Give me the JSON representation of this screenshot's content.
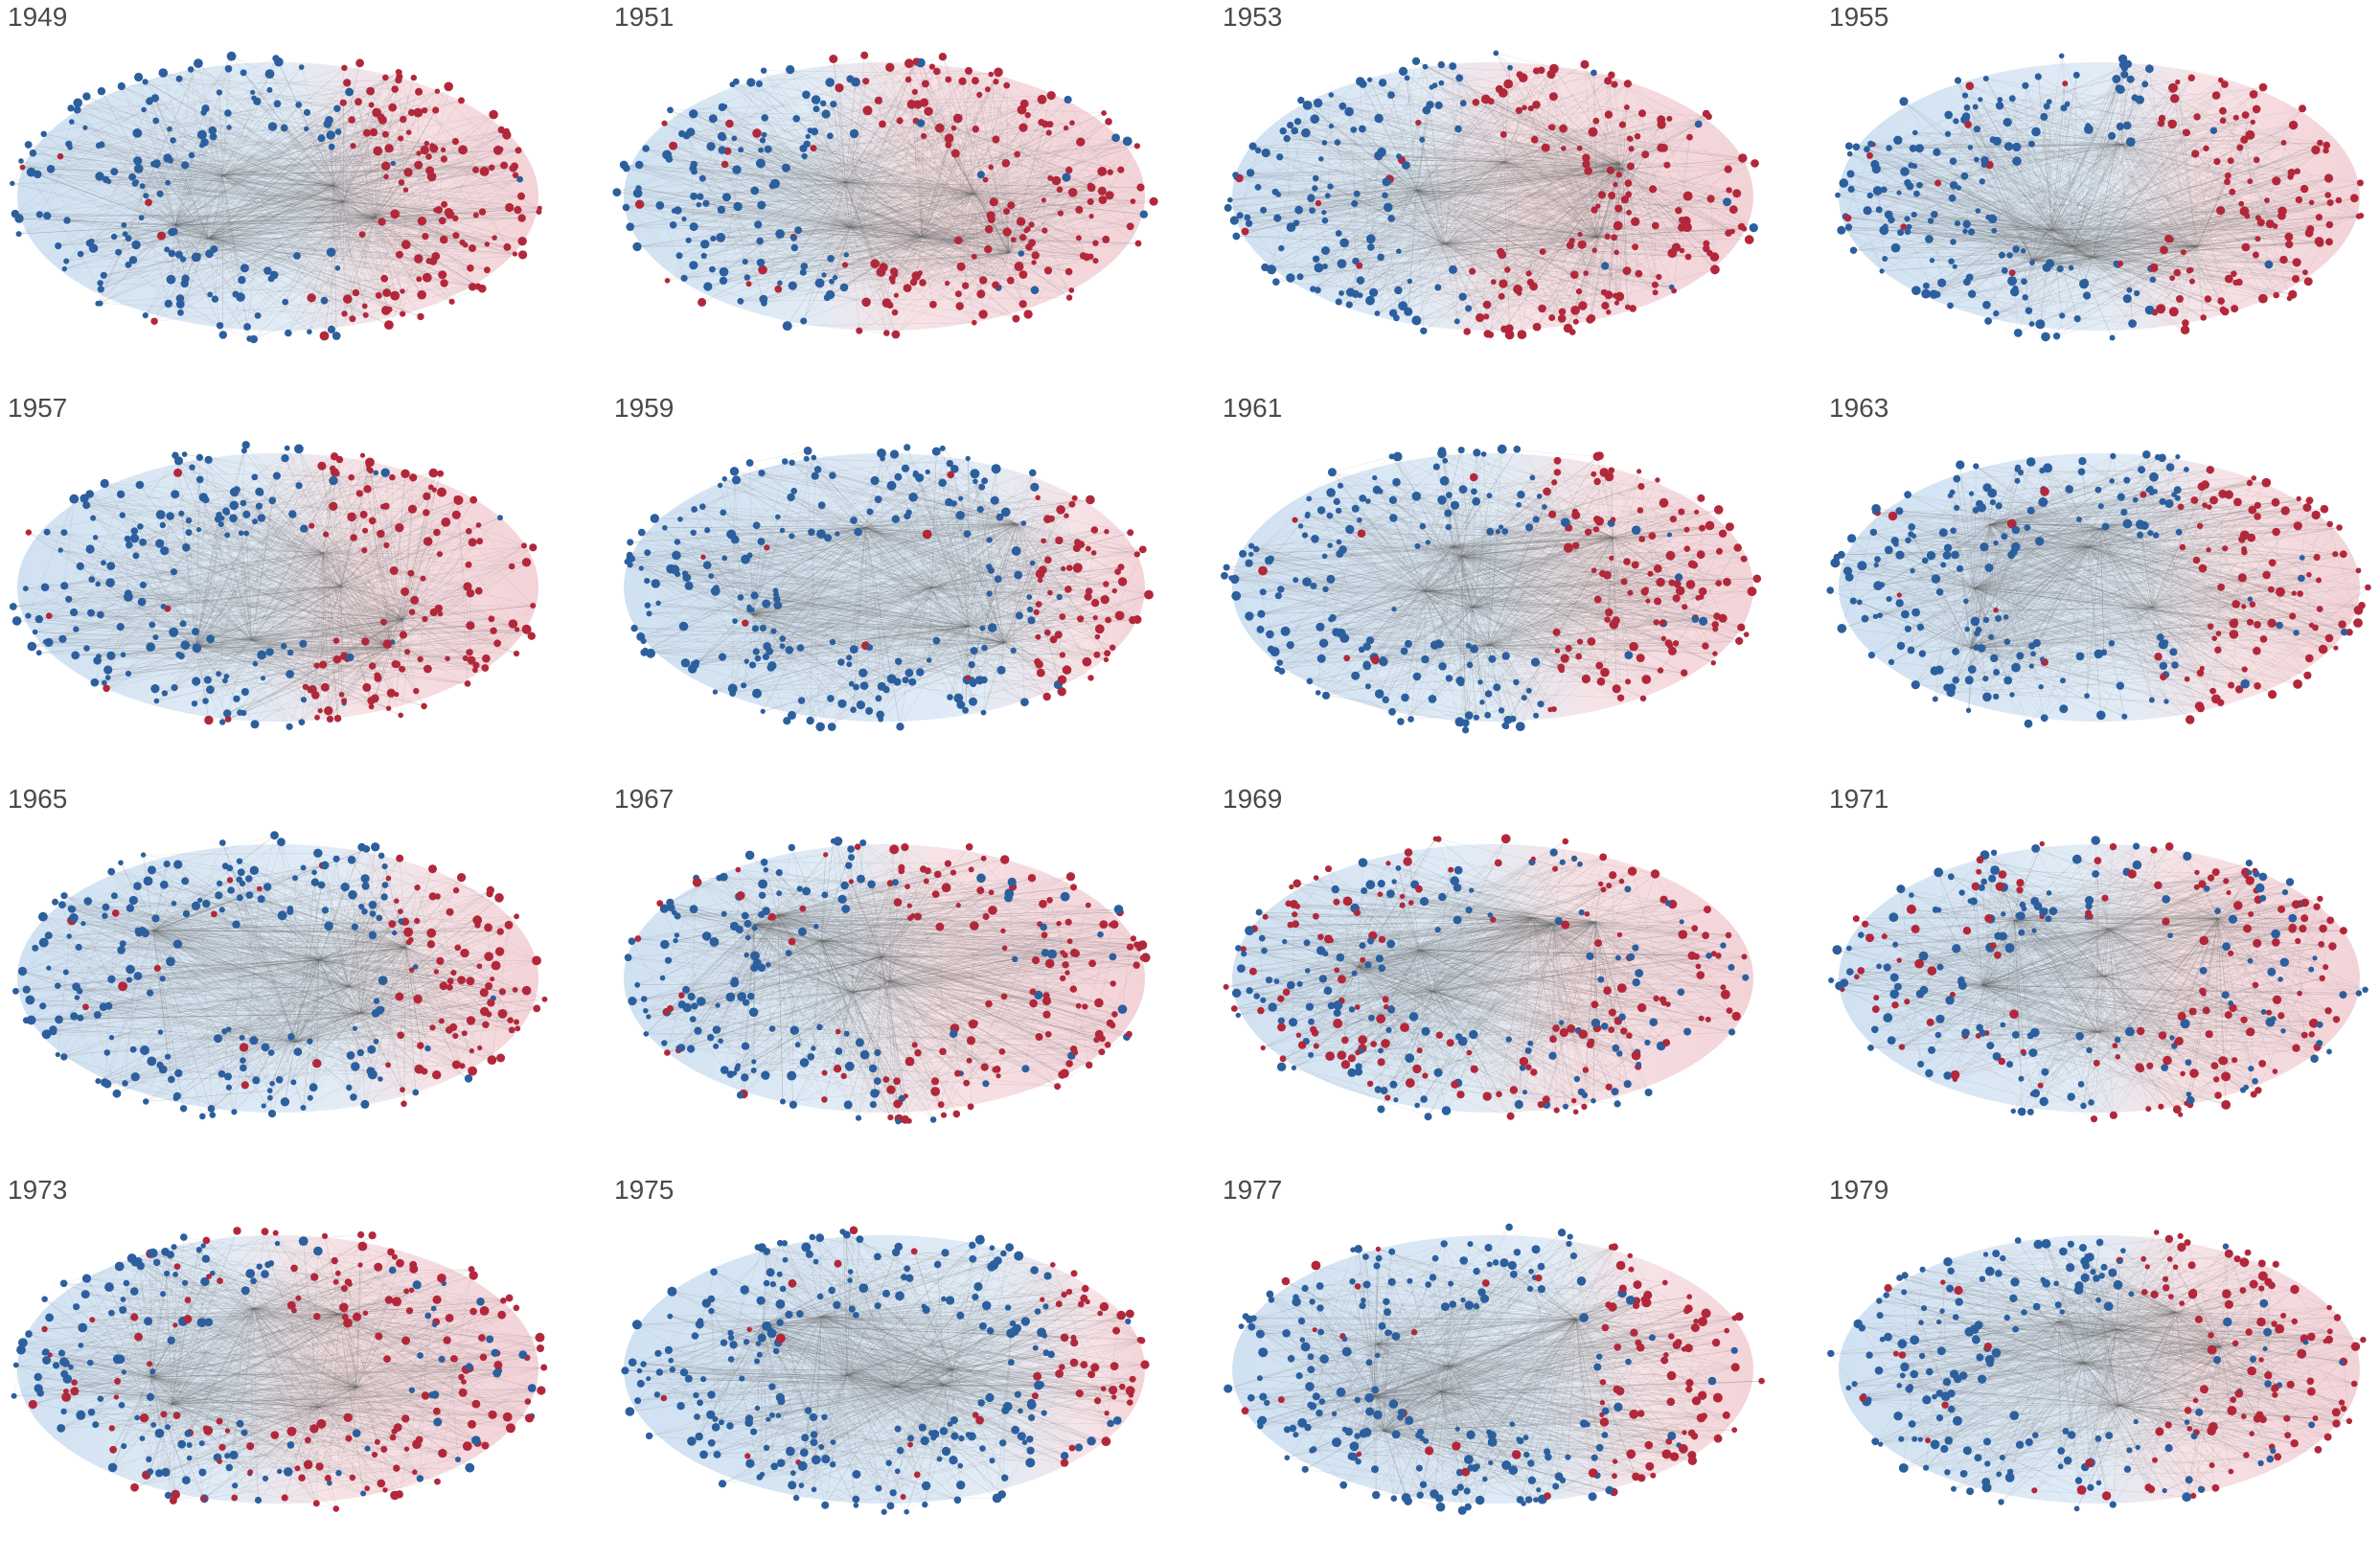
{
  "colors": {
    "blue_node": "#2c5f9e",
    "blue_halo": "#a9c8e6",
    "red_node": "#b2283a",
    "red_halo": "#e8aeb7",
    "edge": "#6e6e6e",
    "label": "#4a4a4a"
  },
  "panels": [
    {
      "year": "1949",
      "red_share": 0.38,
      "mixing": 0.05
    },
    {
      "year": "1951",
      "red_share": 0.55,
      "mixing": 0.1
    },
    {
      "year": "1953",
      "red_share": 0.55,
      "mixing": 0.06
    },
    {
      "year": "1955",
      "red_share": 0.4,
      "mixing": 0.05
    },
    {
      "year": "1957",
      "red_share": 0.45,
      "mixing": 0.05
    },
    {
      "year": "1959",
      "red_share": 0.22,
      "mixing": 0.04
    },
    {
      "year": "1961",
      "red_share": 0.4,
      "mixing": 0.06
    },
    {
      "year": "1963",
      "red_share": 0.35,
      "mixing": 0.05
    },
    {
      "year": "1965",
      "red_share": 0.3,
      "mixing": 0.08
    },
    {
      "year": "1967",
      "red_share": 0.5,
      "mixing": 0.15
    },
    {
      "year": "1969",
      "red_share": 0.45,
      "mixing": 0.4
    },
    {
      "year": "1971",
      "red_share": 0.45,
      "mixing": 0.35
    },
    {
      "year": "1973",
      "red_share": 0.5,
      "mixing": 0.25
    },
    {
      "year": "1975",
      "red_share": 0.2,
      "mixing": 0.1
    },
    {
      "year": "1977",
      "red_share": 0.3,
      "mixing": 0.12
    },
    {
      "year": "1979",
      "red_share": 0.42,
      "mixing": 0.15
    }
  ]
}
